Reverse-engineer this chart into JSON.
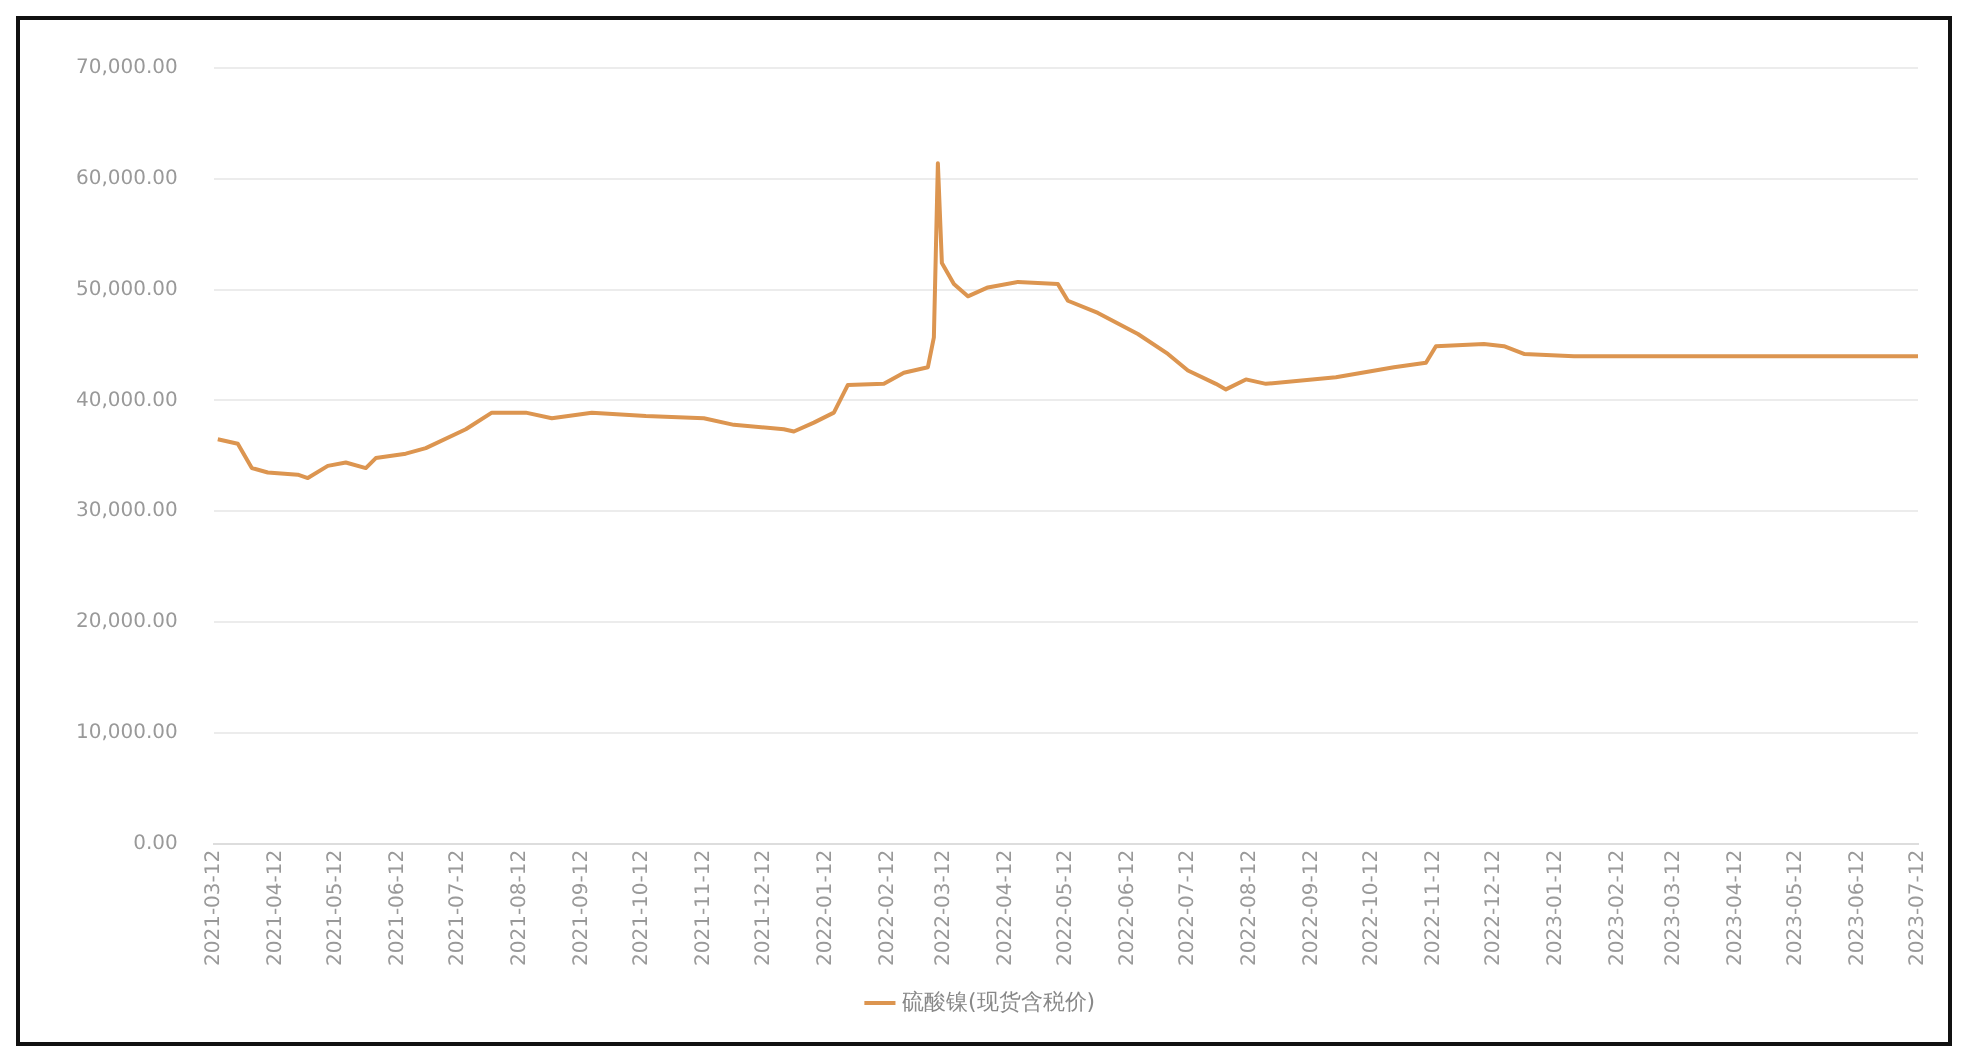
{
  "chart_data": {
    "type": "line",
    "x": [
      "2021-03-14",
      "2021-03-24",
      "2021-03-31",
      "2021-04-08",
      "2021-04-23",
      "2021-04-28",
      "2021-05-08",
      "2021-05-17",
      "2021-05-27",
      "2021-06-01",
      "2021-06-16",
      "2021-06-26",
      "2021-07-16",
      "2021-07-29",
      "2021-08-15",
      "2021-08-28",
      "2021-09-17",
      "2021-10-14",
      "2021-11-12",
      "2021-11-27",
      "2021-12-22",
      "2021-12-27",
      "2022-01-06",
      "2022-01-16",
      "2022-01-23",
      "2022-02-10",
      "2022-02-20",
      "2022-03-04",
      "2022-03-07",
      "2022-03-09",
      "2022-03-11",
      "2022-03-17",
      "2022-03-24",
      "2022-04-03",
      "2022-04-18",
      "2022-05-08",
      "2022-05-13",
      "2022-05-28",
      "2022-06-17",
      "2022-07-02",
      "2022-07-12",
      "2022-07-26",
      "2022-07-31",
      "2022-08-10",
      "2022-08-20",
      "2022-09-24",
      "2022-10-23",
      "2022-11-08",
      "2022-11-13",
      "2022-12-07",
      "2022-12-17",
      "2022-12-27",
      "2023-01-21",
      "2023-07-12"
    ],
    "series": [
      {
        "name": "硫酸镍(现货含税价)",
        "color": "#dc9550",
        "values": [
          36500,
          36100,
          33900,
          33500,
          33300,
          33000,
          34100,
          34400,
          33900,
          34800,
          35200,
          35700,
          37400,
          38900,
          38900,
          38400,
          38900,
          38600,
          38400,
          37800,
          37400,
          37200,
          38000,
          38900,
          41400,
          41500,
          42500,
          43000,
          45700,
          61400,
          52400,
          50500,
          49400,
          50200,
          50700,
          50500,
          49000,
          47900,
          46000,
          44200,
          42700,
          41500,
          41000,
          41900,
          41500,
          42100,
          43000,
          43400,
          44900,
          45100,
          44900,
          44200,
          44000,
          44000
        ]
      }
    ],
    "xlim": [
      "2021-03-12",
      "2023-07-12"
    ],
    "xticks": [
      "2021-03-12",
      "2021-04-12",
      "2021-05-12",
      "2021-06-12",
      "2021-07-12",
      "2021-08-12",
      "2021-09-12",
      "2021-10-12",
      "2021-11-12",
      "2021-12-12",
      "2022-01-12",
      "2022-02-12",
      "2022-03-12",
      "2022-04-12",
      "2022-05-12",
      "2022-06-12",
      "2022-07-12",
      "2022-08-12",
      "2022-09-12",
      "2022-10-12",
      "2022-11-12",
      "2022-12-12",
      "2023-01-12",
      "2023-02-12",
      "2023-03-12",
      "2023-04-12",
      "2023-05-12",
      "2023-06-12",
      "2023-07-12"
    ],
    "ylim": [
      0,
      70000
    ],
    "yticks": [
      {
        "value": 0,
        "label": "0.00"
      },
      {
        "value": 10000,
        "label": "10,000.00"
      },
      {
        "value": 20000,
        "label": "20,000.00"
      },
      {
        "value": 30000,
        "label": "30,000.00"
      },
      {
        "value": 40000,
        "label": "40,000.00"
      },
      {
        "value": 50000,
        "label": "50,000.00"
      },
      {
        "value": 60000,
        "label": "60,000.00"
      },
      {
        "value": 70000,
        "label": "70,000.00"
      }
    ],
    "grid": "y",
    "legend": "bottom",
    "marker": "none",
    "line_style": "solid"
  }
}
